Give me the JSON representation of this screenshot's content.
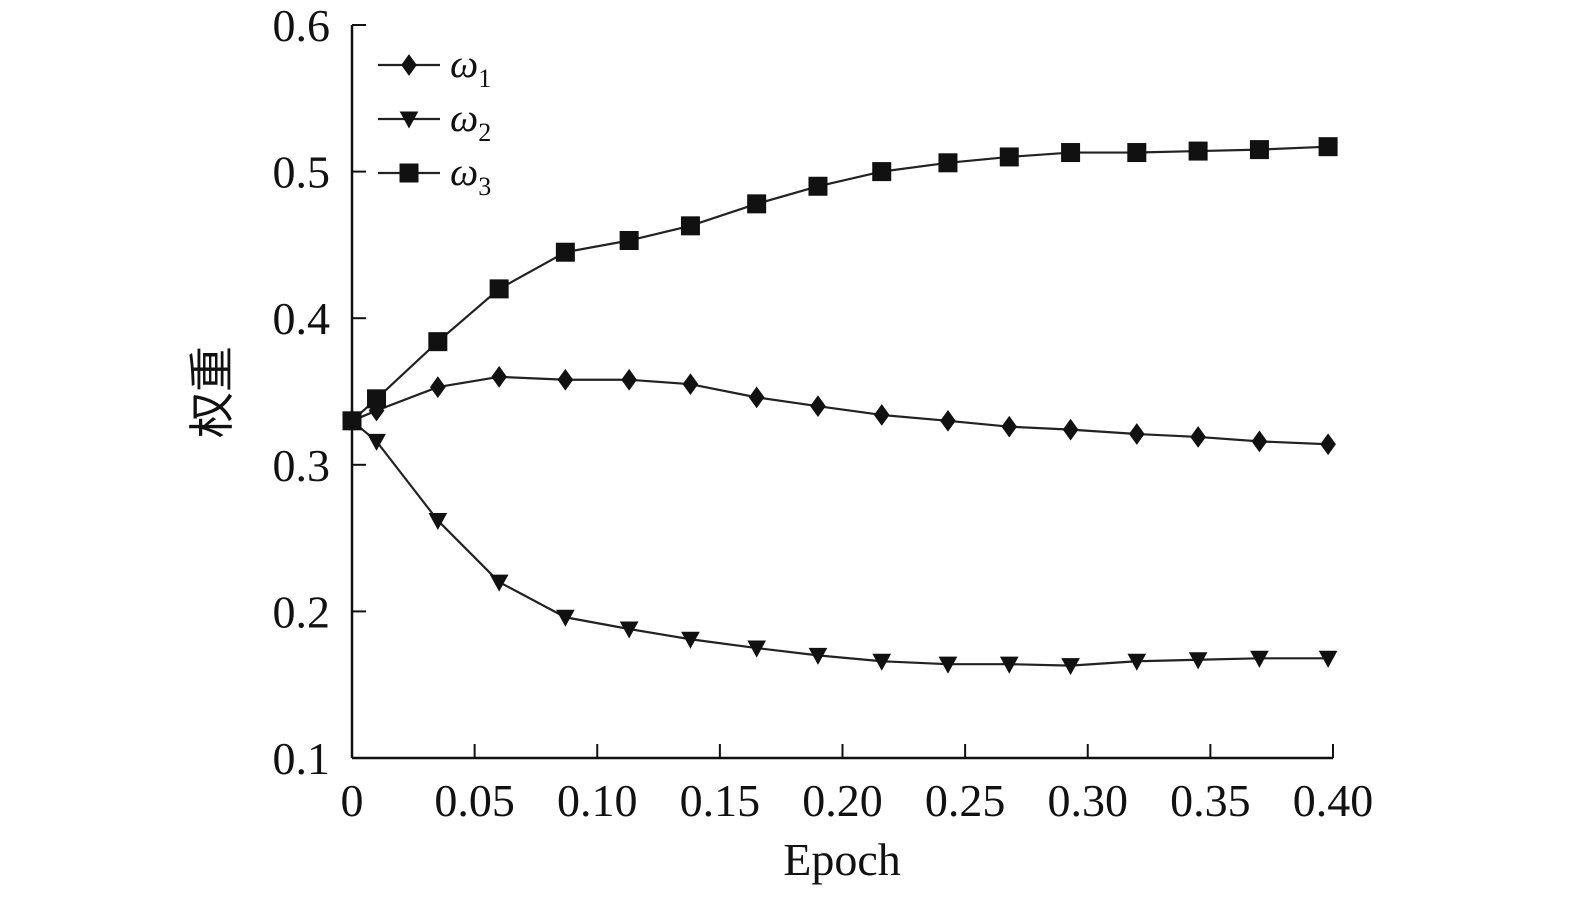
{
  "chart_data": {
    "type": "line",
    "xlabel": "Epoch",
    "ylabel": "权重",
    "xlim": [
      0,
      0.4
    ],
    "ylim": [
      0.1,
      0.6
    ],
    "xticks": [
      "0",
      "0.05",
      "0.10",
      "0.15",
      "0.20",
      "0.25",
      "0.30",
      "0.35",
      "0.40"
    ],
    "yticks": [
      "0.1",
      "0.2",
      "0.3",
      "0.4",
      "0.5",
      "0.6"
    ],
    "grid": false,
    "legend_position": "top-left",
    "x": [
      0,
      0.01,
      0.035,
      0.06,
      0.087,
      0.113,
      0.138,
      0.165,
      0.19,
      0.216,
      0.243,
      0.268,
      0.293,
      0.32,
      0.345,
      0.37,
      0.398
    ],
    "series": [
      {
        "name": "ω",
        "subscript": "1",
        "marker": "diamond",
        "values": [
          0.33,
          0.337,
          0.353,
          0.36,
          0.358,
          0.358,
          0.355,
          0.346,
          0.34,
          0.334,
          0.33,
          0.326,
          0.324,
          0.321,
          0.319,
          0.316,
          0.314
        ]
      },
      {
        "name": "ω",
        "subscript": "2",
        "marker": "triangle-down",
        "values": [
          0.33,
          0.316,
          0.262,
          0.22,
          0.196,
          0.188,
          0.181,
          0.175,
          0.17,
          0.166,
          0.164,
          0.164,
          0.163,
          0.166,
          0.167,
          0.168,
          0.168
        ]
      },
      {
        "name": "ω",
        "subscript": "3",
        "marker": "square",
        "values": [
          0.33,
          0.345,
          0.384,
          0.42,
          0.445,
          0.453,
          0.463,
          0.478,
          0.49,
          0.5,
          0.506,
          0.51,
          0.513,
          0.513,
          0.514,
          0.515,
          0.517
        ]
      }
    ]
  }
}
